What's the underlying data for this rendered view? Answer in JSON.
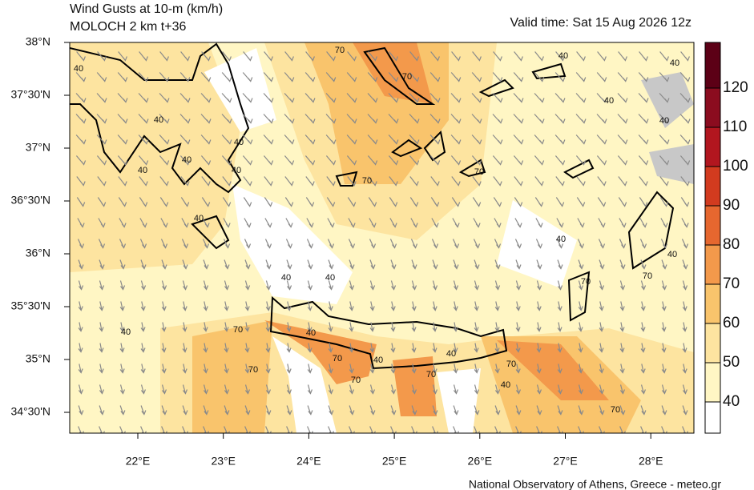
{
  "header": {
    "title": "Wind Gusts at 10-m (km/h)",
    "subtitle": "MOLOCH 2 km t+36",
    "valid_time": "Valid time: Sat 15 Aug 2026 12z"
  },
  "map": {
    "lat_labels": [
      "38°N",
      "37°30'N",
      "37°N",
      "36°30'N",
      "36°N",
      "35°30'N",
      "35°N",
      "34°30'N"
    ],
    "lon_labels": [
      "22°E",
      "23°E",
      "24°E",
      "25°E",
      "26°E",
      "27°E",
      "28°E"
    ],
    "contour_labels": [
      "40",
      "40",
      "40",
      "40",
      "40",
      "40",
      "40",
      "40",
      "40",
      "40",
      "70",
      "70",
      "70",
      "40",
      "40",
      "70",
      "70",
      "40",
      "70",
      "40",
      "70",
      "70",
      "70",
      "40",
      "40",
      "70",
      "70",
      "70",
      "70",
      "40",
      "40",
      "40",
      "40"
    ]
  },
  "colorbar": {
    "ticks": [
      40,
      50,
      60,
      70,
      80,
      90,
      100,
      110,
      120
    ],
    "colors": [
      "#ffffff",
      "#fff6c4",
      "#fde4a0",
      "#f9c46c",
      "#f3994b",
      "#e6672f",
      "#d23b1f",
      "#b2161f",
      "#8b0c1f",
      "#5c0016"
    ]
  },
  "footer": "National Observatory of Athens, Greece - meteo.gr"
}
